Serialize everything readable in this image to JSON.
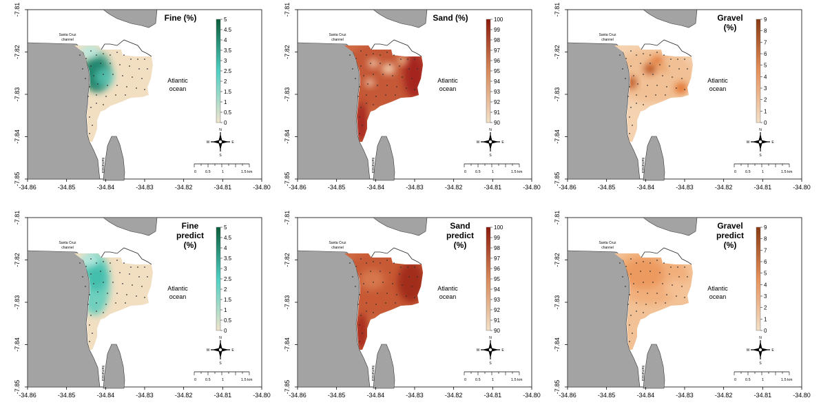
{
  "x_ticks": [
    "-34.86",
    "-34.85",
    "-34.84",
    "-34.83",
    "-34.82",
    "-34.81",
    "-34.80"
  ],
  "y_ticks": [
    "-7.81",
    "-7.82",
    "-7.83",
    "-7.84",
    "-7.85"
  ],
  "ocean_label": "Atlantic\nocean",
  "channel_label": "Santa Cruz\nchannel",
  "island_label": "Itamaracá",
  "scale_ticks": [
    "0",
    "0.5",
    "1",
    "1.5 km"
  ],
  "compass": {
    "n": "N",
    "s": "S",
    "e": "E",
    "w": "W"
  },
  "colors": {
    "land": "#a3a3a3",
    "water": "#ffffff"
  },
  "panels": [
    {
      "id": "fine",
      "title": "Fine (%)",
      "legend": [
        "5",
        "4.5",
        "4",
        "3.5",
        "3",
        "2.5",
        "2",
        "1.5",
        "1",
        "0.5",
        "0"
      ],
      "ramp": [
        "#f1e4cc",
        "#4fd1c5",
        "#0b5d3a"
      ],
      "scheme": "fine"
    },
    {
      "id": "sand",
      "title": "Sand (%)",
      "legend": [
        "100",
        "99",
        "98",
        "97",
        "96",
        "95",
        "94",
        "93",
        "92",
        "91",
        "90"
      ],
      "ramp": [
        "#f3e1c9",
        "#d98a5a",
        "#8b1a0c"
      ],
      "scheme": "sand"
    },
    {
      "id": "gravel",
      "title": "Gravel\n(%)",
      "legend": [
        "9",
        "8",
        "7",
        "6",
        "5",
        "4",
        "3",
        "2",
        "1",
        "0"
      ],
      "ramp": [
        "#f3e1c9",
        "#e8925b",
        "#8a3a12"
      ],
      "scheme": "gravel"
    },
    {
      "id": "fine-predict",
      "title": "Fine\npredict\n(%)",
      "legend": [
        "5",
        "4.5",
        "4",
        "3.5",
        "3",
        "2.5",
        "2",
        "1.5",
        "1",
        "0.5",
        "0"
      ],
      "ramp": [
        "#f1e4cc",
        "#4fd1c5",
        "#0b5d3a"
      ],
      "scheme": "fine-predict"
    },
    {
      "id": "sand-predict",
      "title": "Sand\npredict\n(%)",
      "legend": [
        "100",
        "99",
        "98",
        "97",
        "96",
        "95",
        "94",
        "93",
        "92",
        "91",
        "90"
      ],
      "ramp": [
        "#f3e1c9",
        "#d98a5a",
        "#8b1a0c"
      ],
      "scheme": "sand-predict"
    },
    {
      "id": "gravel-predict",
      "title": "Gravel\npredict\n(%)",
      "legend": [
        "9",
        "8",
        "7",
        "6",
        "5",
        "4",
        "3",
        "2",
        "1",
        "0"
      ],
      "ramp": [
        "#f3e1c9",
        "#e8925b",
        "#8a3a12"
      ],
      "scheme": "gravel-predict"
    }
  ]
}
